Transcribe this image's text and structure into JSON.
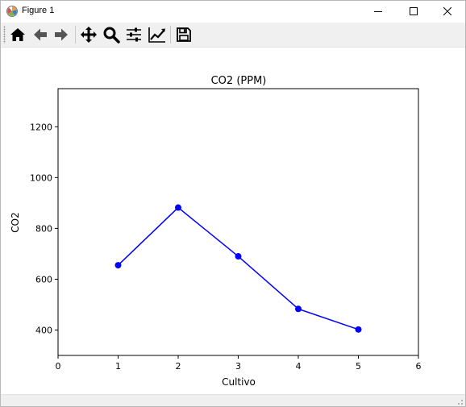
{
  "window": {
    "title": "Figure 1",
    "app_icon": "matplotlib-icon",
    "controls": [
      "minimize-icon",
      "maximize-icon",
      "close-icon"
    ]
  },
  "toolbar": {
    "tools": [
      {
        "name": "home",
        "icon": "home-icon"
      },
      {
        "name": "back",
        "icon": "arrow-left-icon"
      },
      {
        "name": "forward",
        "icon": "arrow-right-icon"
      },
      {
        "name": "pan",
        "icon": "move-icon"
      },
      {
        "name": "zoom",
        "icon": "magnifier-icon"
      },
      {
        "name": "subplots",
        "icon": "sliders-icon"
      },
      {
        "name": "customize",
        "icon": "line-chart-icon"
      },
      {
        "name": "save",
        "icon": "floppy-disk-icon"
      }
    ]
  },
  "chart_data": {
    "type": "line",
    "title": "CO2 (PPM)",
    "xlabel": "Cultivo",
    "ylabel": "CO2",
    "x": [
      1,
      2,
      3,
      4,
      5
    ],
    "series": [
      {
        "values": [
          655,
          882,
          690,
          483,
          402
        ],
        "color": "#0000ff",
        "marker": "circle"
      }
    ],
    "xlim": [
      0,
      6
    ],
    "ylim": [
      300,
      1350
    ],
    "xticks": [
      0,
      1,
      2,
      3,
      4,
      5,
      6
    ],
    "yticks": [
      400,
      600,
      800,
      1000,
      1200
    ],
    "grid": false,
    "legend": "none"
  }
}
